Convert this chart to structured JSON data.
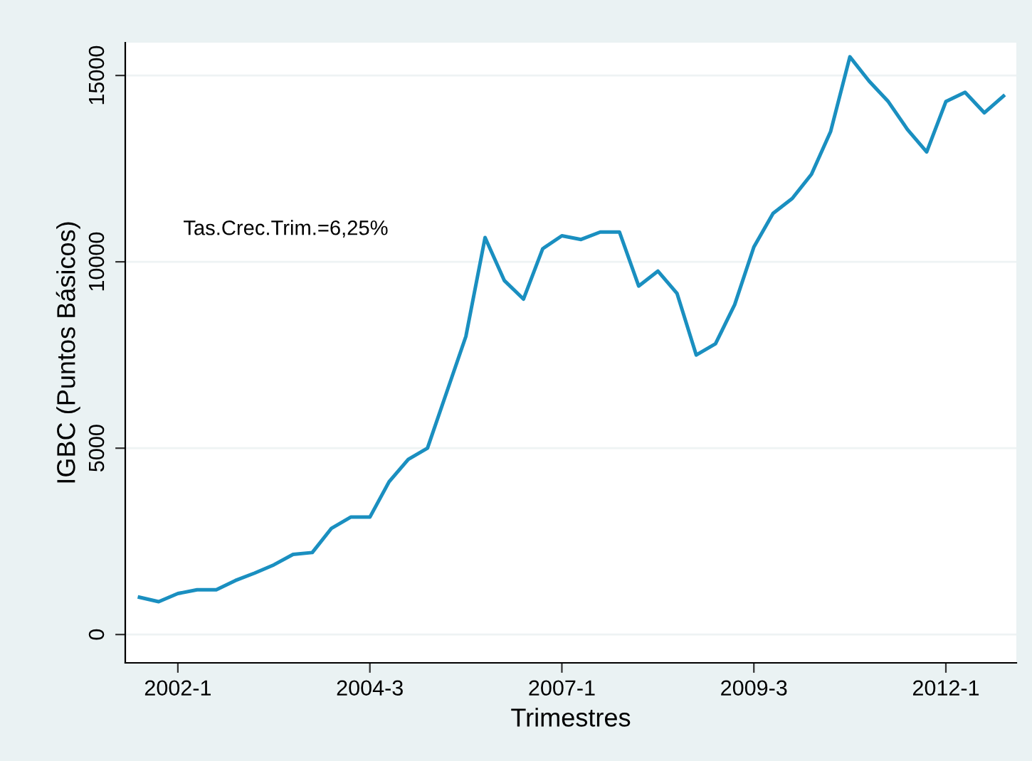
{
  "chart_data": {
    "type": "line",
    "xlabel": "Trimestres",
    "ylabel": "IGBC (Puntos Básicos)",
    "annotations": [
      "Tas.Crec.Trim.=6,25%"
    ],
    "categories": [
      null,
      null,
      "2002-1",
      null,
      null,
      null,
      null,
      null,
      null,
      null,
      null,
      null,
      "2004-3",
      null,
      null,
      null,
      null,
      null,
      null,
      null,
      null,
      null,
      "2007-1",
      null,
      null,
      null,
      null,
      null,
      null,
      null,
      null,
      null,
      "2009-3",
      null,
      null,
      null,
      null,
      null,
      null,
      null,
      null,
      null,
      "2012-1",
      null,
      null,
      null
    ],
    "series": [
      {
        "color": "#1a8fc0",
        "values": [
          1000,
          880,
          1100,
          1200,
          1200,
          1450,
          1650,
          1870,
          2150,
          2200,
          2850,
          3150,
          3150,
          4100,
          4700,
          5000,
          6500,
          8000,
          10650,
          9500,
          9000,
          10350,
          10700,
          10600,
          10800,
          10800,
          9350,
          9750,
          9150,
          7500,
          7800,
          8850,
          10400,
          11300,
          11700,
          12350,
          13500,
          15500,
          14850,
          14300,
          13550,
          12950,
          14300,
          14550,
          14000,
          14450
        ]
      }
    ],
    "ylim": [
      -760,
      15880
    ],
    "yticks": [
      0,
      5000,
      10000,
      15000
    ],
    "grid": "y",
    "legend": false,
    "marker": "none",
    "line_style": "solid"
  }
}
